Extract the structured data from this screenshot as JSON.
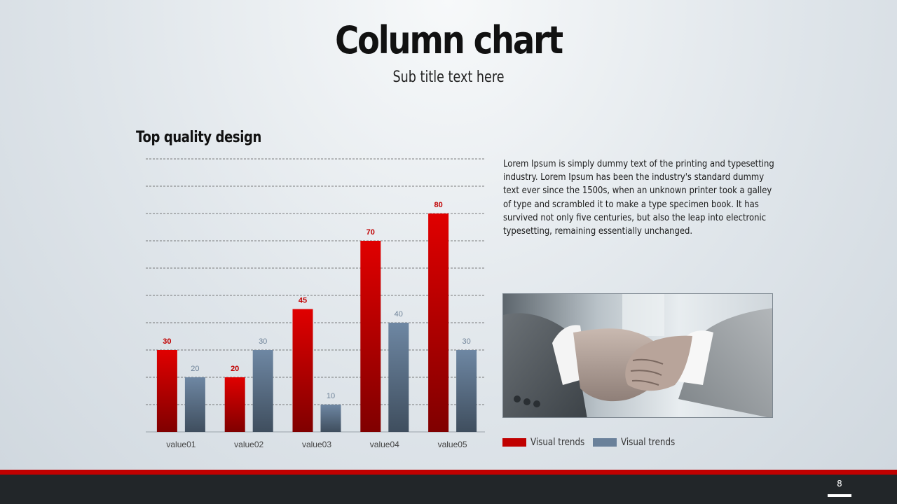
{
  "slide": {
    "title": "Column chart",
    "subtitle": "Sub title text here",
    "section_title": "Top quality design",
    "body_text": "Lorem Ipsum is simply dummy text of the printing and typesetting industry. Lorem Ipsum has been the industry's standard dummy text ever since the 1500s, when an unknown printer took a galley of type and scrambled it to make a type specimen book. It has survived not only five centuries, but also the leap into electronic typesetting, remaining essentially unchanged.",
    "page_number": "8",
    "photo_icon": "handshake-photo"
  },
  "legend": [
    {
      "label": "Visual trends",
      "color": "#c00000"
    },
    {
      "label": "Visual trends",
      "color": "#6a819a"
    }
  ],
  "colors": {
    "red_top": "#e00000",
    "red_bottom": "#800000",
    "blue_top": "#6e87a3",
    "blue_bottom": "#3f4e5e",
    "red_label": "#c00000",
    "blue_label": "#6f8399",
    "accent_bar": "#c00000",
    "footer_dark": "#222629"
  },
  "chart_data": {
    "type": "bar",
    "categories": [
      "value01",
      "value02",
      "value03",
      "value04",
      "value05"
    ],
    "series": [
      {
        "values": [
          30,
          20,
          45,
          70,
          80
        ]
      },
      {
        "values": [
          20,
          30,
          10,
          40,
          30
        ]
      }
    ],
    "ylim": [
      0,
      100
    ],
    "grid": true,
    "data_labels": true
  }
}
